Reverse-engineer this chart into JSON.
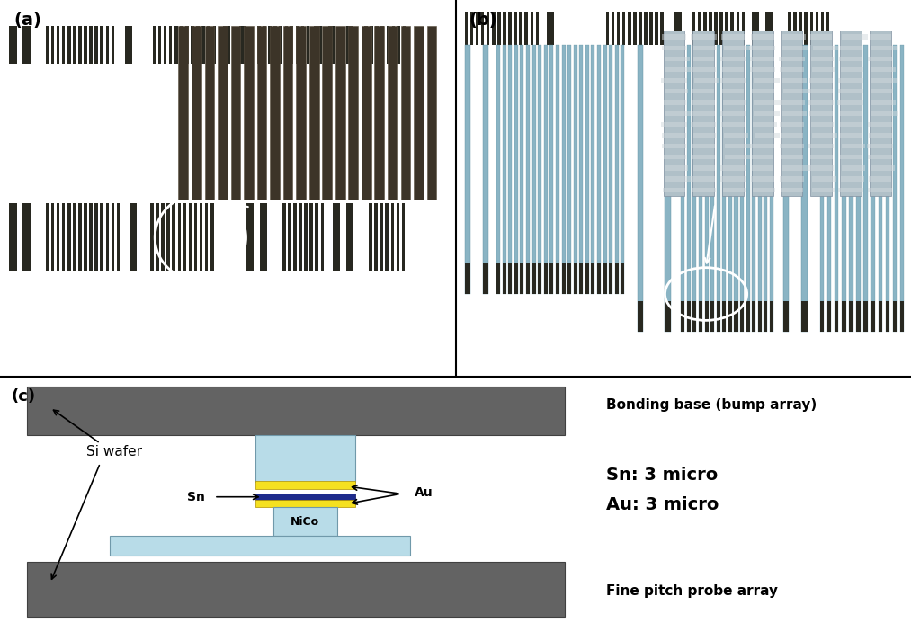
{
  "fig_width": 10.13,
  "fig_height": 6.93,
  "dpi": 100,
  "bg_a": "#c0c0bc",
  "bg_b": "#bfb0a8",
  "bg_bottom": "#ffffff",
  "dark_gray_c": "#636363",
  "light_cyan_c": "#b8dce8",
  "yellow_c": "#f5e020",
  "dark_blue_c": "#1e2b8c",
  "inset_a_bg": "#686050",
  "inset_a_bar": "#3c3428",
  "inset_b_bg": "#d0b898",
  "inset_b_bar": "#b0c0c8",
  "label_a": "(a)",
  "label_b": "(b)",
  "label_c": "(c)",
  "text_bonding_base": "Bonding base (bump array)",
  "text_sn": "Sn: 3 micro",
  "text_au": "Au: 3 micro",
  "text_si_wafer": "Si wafer",
  "text_fine_pitch": "Fine pitch probe array",
  "text_sn_label": "Sn",
  "text_au_label": "Au",
  "text_nico_label": "NiCo"
}
